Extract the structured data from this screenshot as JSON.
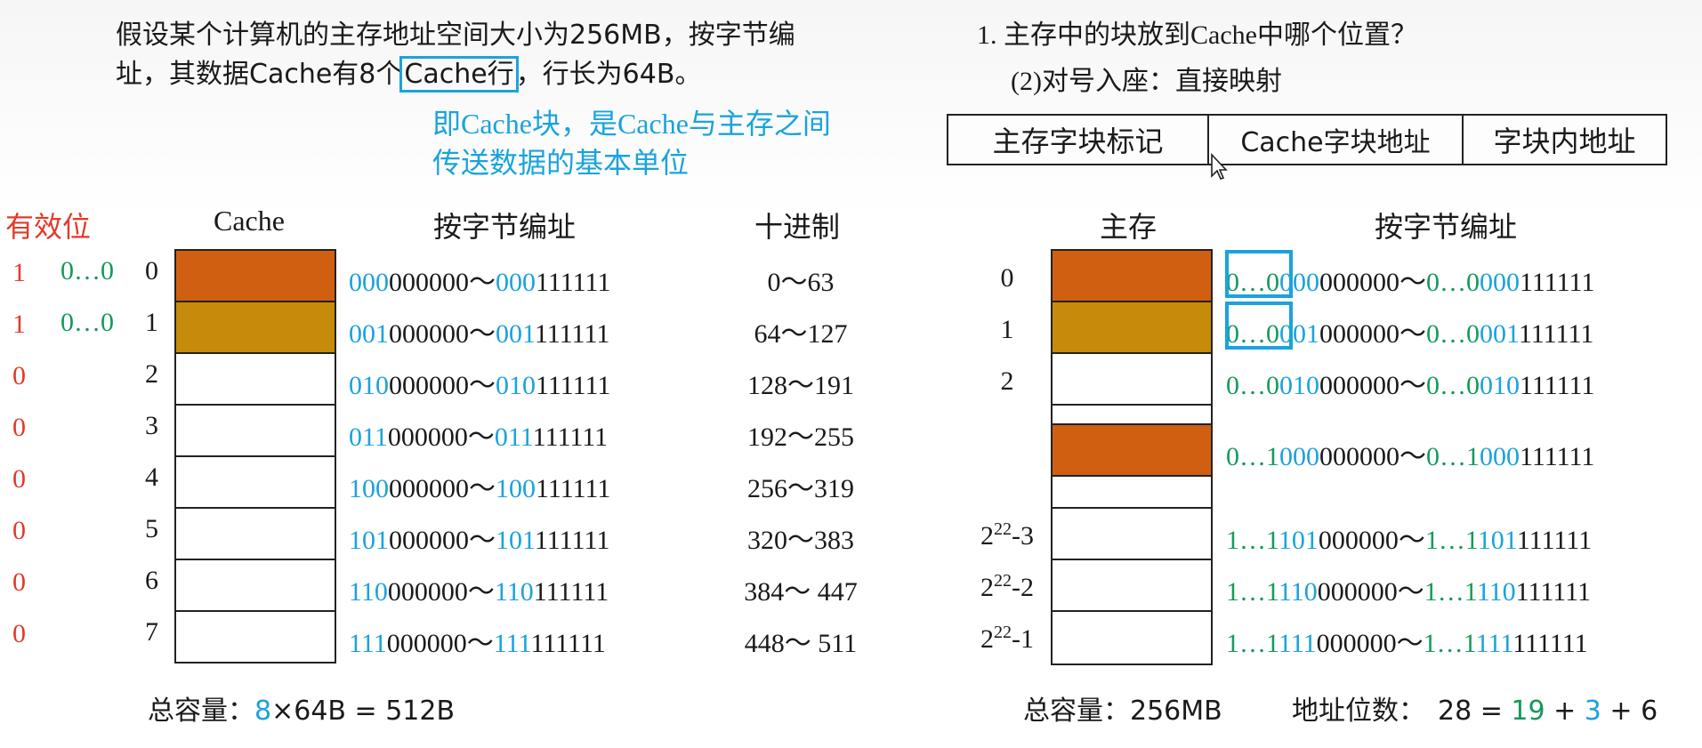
{
  "problem": {
    "line1": "假设某个计算机的主存地址空间大小为256MB，按字节编",
    "line2_pre": "址，其数据Cache有8个",
    "line2_boxed": "Cache行",
    "line2_post": "，行长为64B。"
  },
  "note": {
    "line1": "即Cache块，是Cache与主存之间",
    "line2": "传送数据的基本单位"
  },
  "question": {
    "q1": "1. 主存中的块放到Cache中哪个位置？",
    "q2": "(2)对号入座：直接映射"
  },
  "address_format": {
    "tag": "主存字块标记",
    "cache_block": "Cache字块地址",
    "offset": "字块内地址"
  },
  "cache_headers": {
    "valid": "有效位",
    "cache": "Cache",
    "addr": "按字节编址",
    "decimal": "十进制"
  },
  "cache_rows": [
    {
      "valid": "1",
      "tag": "0…0",
      "idx": "0",
      "fill": "#d15f11",
      "hi": "000",
      "lo": "000000",
      "hi2": "000",
      "lo2": "111111",
      "dec": "0～63"
    },
    {
      "valid": "1",
      "tag": "0…0",
      "idx": "1",
      "fill": "#c68b0a",
      "hi": "001",
      "lo": "000000",
      "hi2": "001",
      "lo2": "111111",
      "dec": "64～127"
    },
    {
      "valid": "0",
      "tag": "",
      "idx": "2",
      "fill": "#ffffff",
      "hi": "010",
      "lo": "000000",
      "hi2": "010",
      "lo2": "111111",
      "dec": "128～191"
    },
    {
      "valid": "0",
      "tag": "",
      "idx": "3",
      "fill": "#ffffff",
      "hi": "011",
      "lo": "000000",
      "hi2": "011",
      "lo2": "111111",
      "dec": "192～255"
    },
    {
      "valid": "0",
      "tag": "",
      "idx": "4",
      "fill": "#ffffff",
      "hi": "100",
      "lo": "000000",
      "hi2": "100",
      "lo2": "111111",
      "dec": "256～319"
    },
    {
      "valid": "0",
      "tag": "",
      "idx": "5",
      "fill": "#ffffff",
      "hi": "101",
      "lo": "000000",
      "hi2": "101",
      "lo2": "111111",
      "dec": "320～383"
    },
    {
      "valid": "0",
      "tag": "",
      "idx": "6",
      "fill": "#ffffff",
      "hi": "110",
      "lo": "000000",
      "hi2": "110",
      "lo2": "111111",
      "dec": "384～ 447"
    },
    {
      "valid": "0",
      "tag": "",
      "idx": "7",
      "fill": "#ffffff",
      "hi": "111",
      "lo": "000000",
      "hi2": "111",
      "lo2": "111111",
      "dec": "448～ 511"
    }
  ],
  "cache_total": {
    "label": "总容量：",
    "count": "8",
    "rest": "×64B = 512B"
  },
  "mem_headers": {
    "mem": "主存",
    "addr": "按字节编址"
  },
  "mem_rows": [
    {
      "idx": "0",
      "base": "",
      "exp": "",
      "suf": "",
      "g1": "0…0",
      "b1": "000",
      "k1": "000000",
      "g2": "0…0",
      "b2": "000",
      "k2": "111111"
    },
    {
      "idx": "1",
      "base": "",
      "exp": "",
      "suf": "",
      "g1": "0…0",
      "b1": "001",
      "k1": "000000",
      "g2": "0…0",
      "b2": "001",
      "k2": "111111"
    },
    {
      "idx": "2",
      "base": "",
      "exp": "",
      "suf": "",
      "g1": "0…0",
      "b1": "010",
      "k1": "000000",
      "g2": "0…0",
      "b2": "010",
      "k2": "111111"
    },
    {
      "idx": "",
      "base": "",
      "exp": "",
      "suf": "",
      "g1": "0…1",
      "b1": "000",
      "k1": "000000",
      "g2": "0…1",
      "b2": "000",
      "k2": "111111"
    },
    {
      "idx": "",
      "base": "2",
      "exp": "22",
      "suf": "-3",
      "g1": "1…1",
      "b1": "101",
      "k1": "000000",
      "g2": "1…1",
      "b2": "101",
      "k2": "111111"
    },
    {
      "idx": "",
      "base": "2",
      "exp": "22",
      "suf": "-2",
      "g1": "1…1",
      "b1": "110",
      "k1": "000000",
      "g2": "1…1",
      "b2": "110",
      "k2": "111111"
    },
    {
      "idx": "",
      "base": "2",
      "exp": "22",
      "suf": "-1",
      "g1": "1…1",
      "b1": "111",
      "k1": "000000",
      "g2": "1…1",
      "b2": "111",
      "k2": "111111"
    }
  ],
  "mem_total": {
    "label": "总容量：256MB",
    "bits_label": "地址位数：",
    "bits_total": "28 = ",
    "tag_bits": "19",
    "plus1": " + ",
    "idx_bits": "3",
    "plus2": " + 6"
  },
  "colors": {
    "accent_blue": "#1aa3dc",
    "green": "#159a5a",
    "red": "#e23a2a",
    "orange": "#d15f11",
    "gold": "#c68b0a"
  }
}
